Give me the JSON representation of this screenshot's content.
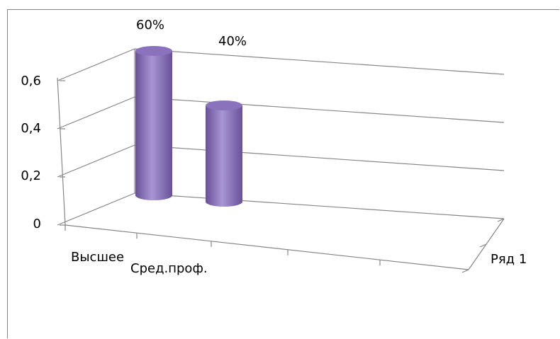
{
  "chart_data": {
    "type": "bar",
    "style": "3d-cylinder",
    "categories": [
      "Высшее",
      "Сред.проф."
    ],
    "series": [
      {
        "name": "Ряд 1",
        "values": [
          0.6,
          0.4
        ],
        "data_labels": [
          "60%",
          "40%"
        ]
      }
    ],
    "y_ticks": [
      "0",
      "0,2",
      "0,4",
      "0,6"
    ],
    "ylim": [
      0,
      0.6
    ],
    "grid": true,
    "legend": "none",
    "colors": {
      "bar": "#8a72bd",
      "bar_dark": "#6a5098",
      "bar_light": "#a796d4",
      "axis": "#868686"
    }
  }
}
